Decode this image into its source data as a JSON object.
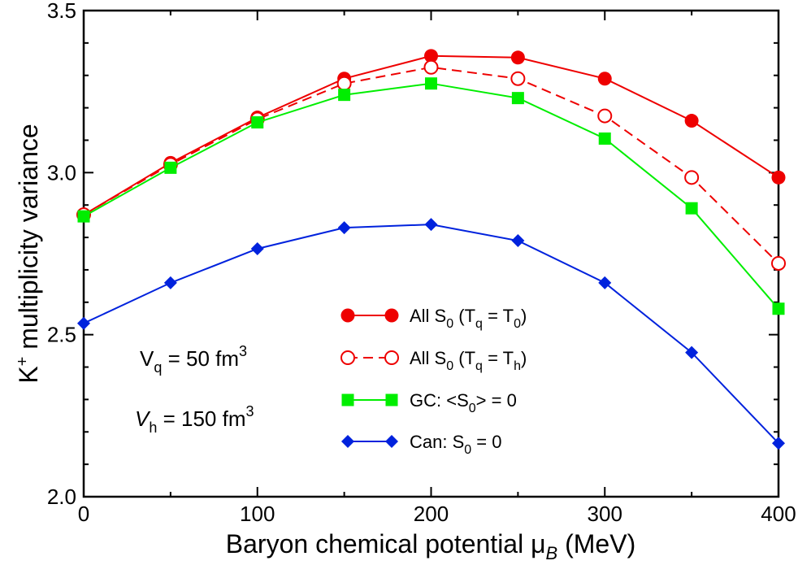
{
  "chart_data": {
    "type": "line",
    "title": "",
    "xlabel": {
      "main": "Baryon chemical potential ",
      "symbol": "μ",
      "sub": "B",
      "unit": " (MeV)"
    },
    "ylabel": {
      "main": "K",
      "sup": "+",
      "rest": " multiplicity variance"
    },
    "xlim": [
      0,
      400
    ],
    "ylim": [
      2.0,
      3.5
    ],
    "xticks": [
      0,
      100,
      200,
      300,
      400
    ],
    "xtick_labels": [
      "0",
      "100",
      "200",
      "300",
      "400"
    ],
    "yticks": [
      2.0,
      2.5,
      3.0,
      3.5
    ],
    "ytick_labels": [
      "2.0",
      "2.5",
      "3.0",
      "3.5"
    ],
    "x": [
      0,
      50,
      100,
      150,
      200,
      250,
      300,
      350,
      400
    ],
    "series": [
      {
        "id": "s1",
        "color": "#ee0000",
        "marker": "filled-circle",
        "dash": "solid",
        "legend": {
          "pre": "All S",
          "sub0": "0",
          "mid": " (T",
          "sub1": "q",
          "mid2": " = T",
          "sub2": "0",
          "post": ")"
        },
        "values": [
          2.87,
          3.03,
          3.17,
          3.29,
          3.36,
          3.355,
          3.29,
          3.16,
          2.985
        ]
      },
      {
        "id": "s2",
        "color": "#ee0000",
        "marker": "open-circle",
        "dash": "dashed",
        "legend": {
          "pre": "All S",
          "sub0": "0",
          "mid": " (T",
          "sub1": "q",
          "mid2": " = T",
          "sub2": "h",
          "post": ")"
        },
        "values": [
          2.87,
          3.025,
          3.165,
          3.275,
          3.325,
          3.29,
          3.175,
          2.985,
          2.72
        ]
      },
      {
        "id": "s3",
        "color": "#00ee00",
        "marker": "filled-square",
        "dash": "solid",
        "legend": {
          "pre": "GC: <S",
          "sub0": "0",
          "post": "> = 0"
        },
        "values": [
          2.865,
          3.015,
          3.155,
          3.24,
          3.275,
          3.23,
          3.105,
          2.89,
          2.58
        ]
      },
      {
        "id": "s4",
        "color": "#0022dd",
        "marker": "filled-diamond",
        "dash": "solid",
        "legend": {
          "pre": "Can: S",
          "sub0": "0",
          "post": " = 0"
        },
        "values": [
          2.535,
          2.66,
          2.765,
          2.83,
          2.84,
          2.79,
          2.66,
          2.445,
          2.165
        ]
      }
    ],
    "legend_position": "lower-right",
    "annotations": [
      {
        "var": "V",
        "sub": "q",
        "text": " =  50 fm",
        "sup": "3",
        "italic": false
      },
      {
        "var": "V",
        "sub": "h",
        "text": " = 150 fm",
        "sup": "3",
        "italic": true
      }
    ],
    "grid": false
  }
}
